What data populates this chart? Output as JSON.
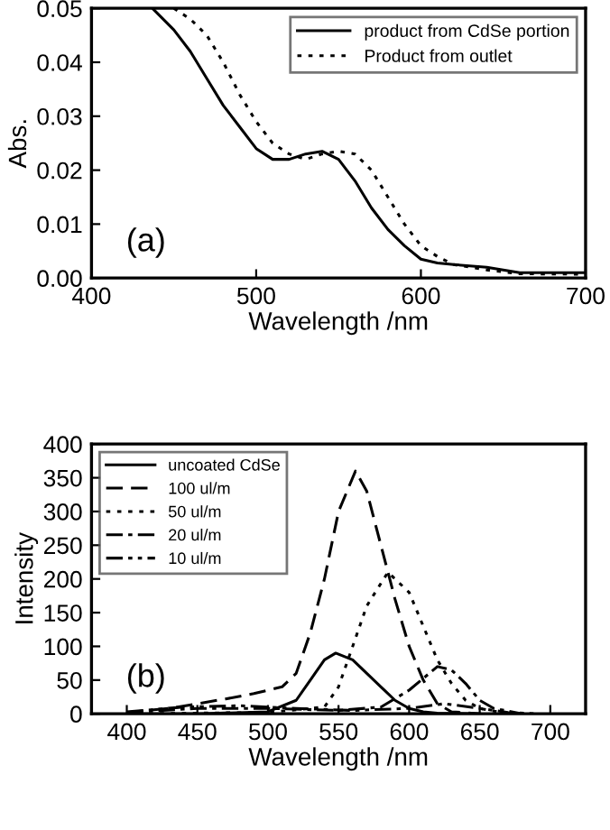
{
  "chart_data": [
    {
      "type": "line",
      "xlabel": "Wavelength /nm",
      "ylabel": "Abs.",
      "annotations": [
        "(a)"
      ],
      "xlim": [
        400,
        700
      ],
      "ylim": [
        0,
        0.05
      ],
      "xticks": [
        400,
        500,
        600,
        700
      ],
      "yticks": [
        {
          "value": 0,
          "label": "0.00"
        },
        {
          "value": 0.01,
          "label": "0.01"
        },
        {
          "value": 0.02,
          "label": "0.02"
        },
        {
          "value": 0.03,
          "label": "0.03"
        },
        {
          "value": 0.04,
          "label": "0.04"
        },
        {
          "value": 0.05,
          "label": "0.05"
        }
      ],
      "legend": "top right",
      "grid": false,
      "series": [
        {
          "name": "product from CdSe portion",
          "color": "#000000",
          "line_style": "solid",
          "x": [
            437,
            450,
            460,
            470,
            480,
            490,
            500,
            510,
            520,
            530,
            540,
            550,
            560,
            570,
            580,
            590,
            600,
            610,
            620,
            640,
            650,
            660,
            700
          ],
          "values": [
            0.05,
            0.046,
            0.042,
            0.037,
            0.032,
            0.028,
            0.024,
            0.022,
            0.022,
            0.023,
            0.0235,
            0.022,
            0.018,
            0.013,
            0.009,
            0.006,
            0.0035,
            0.0028,
            0.0025,
            0.002,
            0.0015,
            0.001,
            0.001
          ]
        },
        {
          "name": "Product from outlet",
          "color": "#000000",
          "line_style": "dotted",
          "x": [
            450,
            460,
            470,
            480,
            490,
            500,
            510,
            520,
            530,
            540,
            550,
            560,
            570,
            580,
            590,
            600,
            610,
            620,
            640,
            660,
            700
          ],
          "values": [
            0.05,
            0.048,
            0.045,
            0.04,
            0.034,
            0.029,
            0.025,
            0.023,
            0.022,
            0.023,
            0.0235,
            0.023,
            0.02,
            0.015,
            0.01,
            0.006,
            0.004,
            0.0025,
            0.0015,
            0.0008,
            0.0007
          ]
        }
      ]
    },
    {
      "type": "line",
      "xlabel": "Wavelength /nm",
      "ylabel": "Intensity",
      "annotations": [
        "(b)"
      ],
      "xlim": [
        375,
        725
      ],
      "ylim": [
        0,
        400
      ],
      "xticks": [
        400,
        450,
        500,
        550,
        600,
        650,
        700
      ],
      "yticks": [
        0,
        50,
        100,
        150,
        200,
        250,
        300,
        350,
        400
      ],
      "legend": "top left",
      "grid": false,
      "series": [
        {
          "name": "uncoated CdSe",
          "color": "#000000",
          "line_style": "solid",
          "x": [
            400,
            450,
            500,
            520,
            530,
            540,
            548,
            560,
            570,
            580,
            590,
            600,
            610,
            620,
            650
          ],
          "values": [
            0,
            0,
            3,
            20,
            50,
            80,
            90,
            80,
            60,
            40,
            20,
            8,
            3,
            1,
            0
          ]
        },
        {
          "name": "100 ul/m",
          "color": "#000000",
          "line_style": "dashed",
          "x": [
            400,
            430,
            450,
            470,
            490,
            510,
            520,
            530,
            540,
            550,
            562,
            570,
            580,
            590,
            600,
            610,
            620,
            630,
            650
          ],
          "values": [
            2,
            8,
            15,
            22,
            30,
            40,
            60,
            120,
            200,
            300,
            360,
            330,
            250,
            170,
            100,
            50,
            15,
            3,
            0
          ]
        },
        {
          "name": "50 ul/m",
          "color": "#000000",
          "line_style": "dotted",
          "x": [
            400,
            500,
            540,
            550,
            560,
            570,
            585,
            600,
            610,
            620,
            630,
            640,
            650,
            670
          ],
          "values": [
            0,
            2,
            10,
            40,
            100,
            160,
            210,
            180,
            130,
            80,
            45,
            20,
            8,
            0
          ]
        },
        {
          "name": "20 ul/m",
          "color": "#000000",
          "line_style": "dashdot",
          "x": [
            400,
            450,
            500,
            550,
            580,
            600,
            620,
            630,
            640,
            650,
            660,
            680
          ],
          "values": [
            2,
            8,
            8,
            5,
            10,
            35,
            70,
            65,
            45,
            20,
            8,
            0
          ]
        },
        {
          "name": "10 ul/m",
          "color": "#000000",
          "line_style": "dashdotdot",
          "x": [
            400,
            440,
            480,
            520,
            560,
            600,
            625,
            650,
            670,
            690
          ],
          "values": [
            3,
            10,
            12,
            8,
            5,
            8,
            15,
            8,
            2,
            0
          ]
        }
      ]
    }
  ]
}
